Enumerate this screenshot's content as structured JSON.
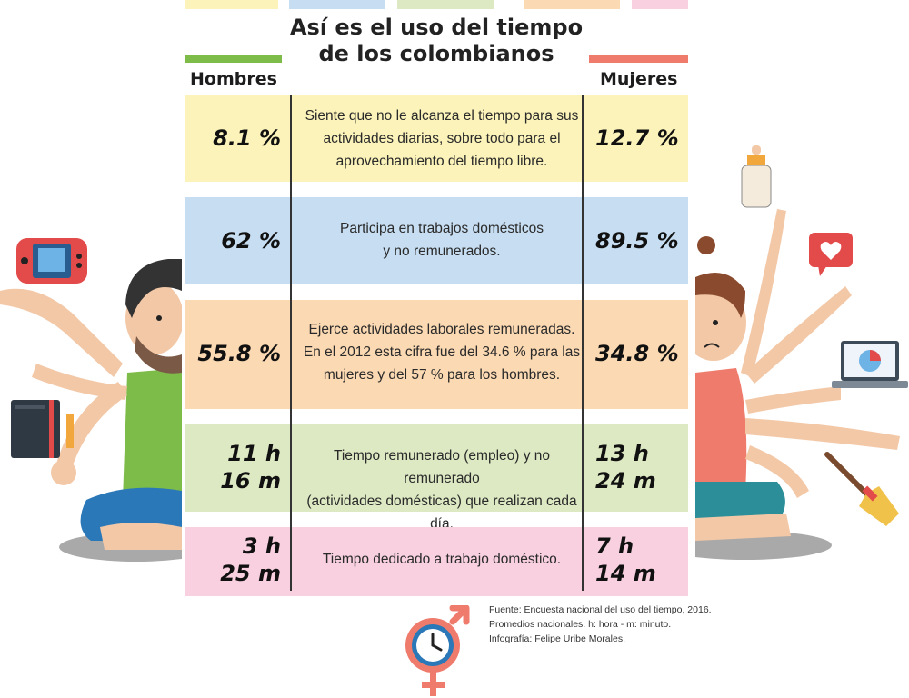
{
  "title_line1": "Así es el uso del tiempo",
  "title_line2": "de los colombianos",
  "headers": {
    "men": "Hombres",
    "women": "Mujeres"
  },
  "rows": [
    {
      "men": [
        "8.1 %"
      ],
      "women": [
        "12.7 %"
      ],
      "desc": [
        "Siente que no le alcanza el tiempo para sus",
        "actividades diarias, sobre todo para el",
        "aprovechamiento del tiempo libre."
      ],
      "color": "#fbf3b9"
    },
    {
      "men": [
        "62 %"
      ],
      "women": [
        "89.5 %"
      ],
      "desc": [
        "Participa en trabajos domésticos",
        "y no remunerados."
      ],
      "color": "#c7def2"
    },
    {
      "men": [
        "55.8 %"
      ],
      "women": [
        "34.8 %"
      ],
      "desc": [
        "Ejerce actividades laborales remuneradas.",
        "En el 2012 esta cifra fue del 34.6 % para las",
        "mujeres y del 57 % para los hombres."
      ],
      "color": "#fbd9b2"
    },
    {
      "men": [
        "11 h",
        "16 m"
      ],
      "women": [
        "13 h",
        "24 m"
      ],
      "desc": [
        "Tiempo remunerado (empleo) y no remunerado",
        "(actividades domésticas) que realizan cada día."
      ],
      "color": "#dde9c3"
    },
    {
      "men": [
        "3 h",
        "25 m"
      ],
      "women": [
        "7 h",
        "14 m"
      ],
      "desc": [
        "Tiempo dedicado a trabajo doméstico."
      ],
      "color": "#f8d0df"
    }
  ],
  "source": [
    "Fuente: Encuesta nacional del uso del tiempo, 2016.",
    "Promedios nacionales. h: hora - m: minuto.",
    "Infografía: Felipe Uribe Morales."
  ],
  "colors": {
    "men_bar": "#7ebc4a",
    "women_bar": "#ef7b6d",
    "divider": "#333333"
  },
  "icons": [
    "game-console-icon",
    "notebook-icon",
    "pencil-icon",
    "baby-bottle-icon",
    "heart-chat-icon",
    "laptop-chart-icon",
    "broom-icon",
    "gender-clock-icon"
  ]
}
